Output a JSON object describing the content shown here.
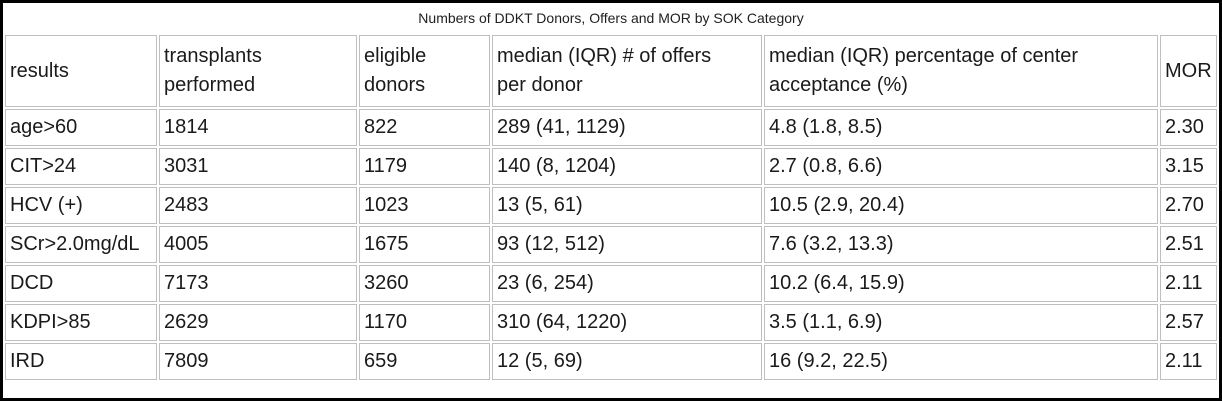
{
  "title": "Numbers of DDKT Donors, Offers and MOR by SOK Category",
  "chart_data": {
    "type": "table",
    "title": "Numbers of DDKT Donors, Offers and MOR by SOK Category",
    "columns": [
      "results",
      "transplants\nperformed",
      "eligible\ndonors",
      "median (IQR) # of offers\nper donor",
      "median (IQR) percentage of center\nacceptance (%)",
      "MOR"
    ],
    "rows": [
      [
        "age>60",
        "1814",
        "822",
        "289 (41, 1129)",
        "4.8 (1.8, 8.5)",
        "2.30"
      ],
      [
        "CIT>24",
        "3031",
        "1179",
        "140 (8, 1204)",
        "2.7 (0.8, 6.6)",
        "3.15"
      ],
      [
        "HCV (+)",
        "2483",
        "1023",
        "13 (5, 61)",
        "10.5 (2.9, 20.4)",
        "2.70"
      ],
      [
        "SCr>2.0mg/dL",
        "4005",
        "1675",
        "93 (12, 512)",
        "7.6 (3.2, 13.3)",
        "2.51"
      ],
      [
        "DCD",
        "7173",
        "3260",
        "23 (6, 254)",
        "10.2 (6.4, 15.9)",
        "2.11"
      ],
      [
        "KDPI>85",
        "2629",
        "1170",
        "310 (64, 1220)",
        "3.5 (1.1, 6.9)",
        "2.57"
      ],
      [
        "IRD",
        "7809",
        "659",
        "12 (5, 69)",
        "16 (9.2, 22.5)",
        "2.11"
      ]
    ]
  },
  "colors": {
    "outer_border": "#000000",
    "cell_border": "#bfbfbf",
    "text": "#1a1a1a",
    "background": "#ffffff"
  }
}
